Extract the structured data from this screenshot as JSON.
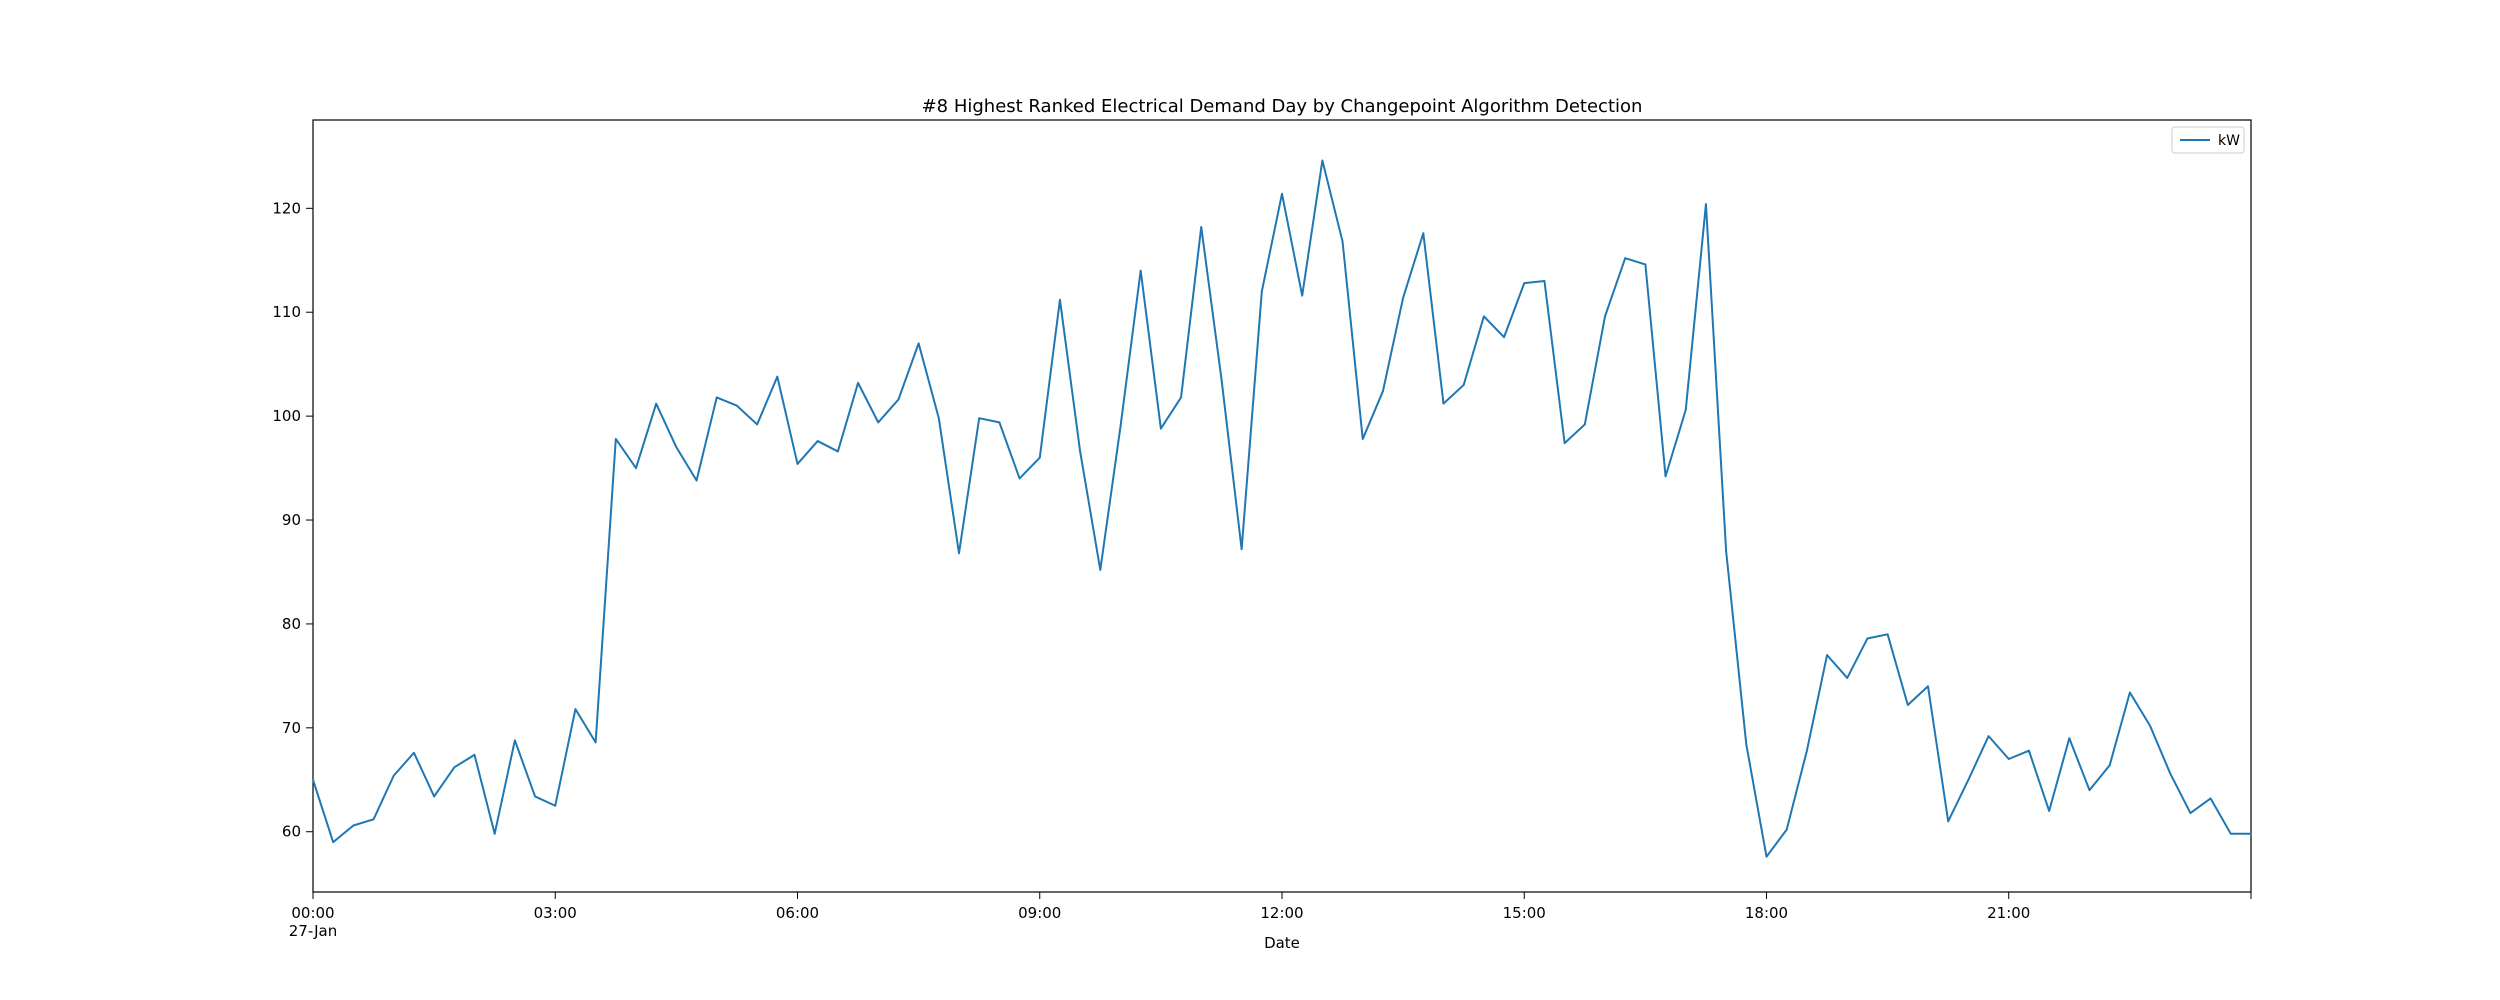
{
  "chart_data": {
    "type": "line",
    "title": "#8 Highest Ranked Electrical Demand Day by Changepoint Algorithm Detection",
    "xlabel": "Date",
    "ylabel": "",
    "x_start": "00:00",
    "x_end": "24:00",
    "xlim": [
      "00:00",
      "24:00"
    ],
    "ylim": [
      54.2,
      128.5
    ],
    "x_ticks": [
      {
        "label": "00:00",
        "sublabel": "27-Jan"
      },
      {
        "label": "03:00",
        "sublabel": ""
      },
      {
        "label": "06:00",
        "sublabel": ""
      },
      {
        "label": "09:00",
        "sublabel": ""
      },
      {
        "label": "12:00",
        "sublabel": ""
      },
      {
        "label": "15:00",
        "sublabel": ""
      },
      {
        "label": "18:00",
        "sublabel": ""
      },
      {
        "label": "21:00",
        "sublabel": ""
      },
      {
        "label": "",
        "sublabel": ""
      }
    ],
    "y_ticks": [
      60,
      70,
      80,
      90,
      100,
      110,
      120
    ],
    "legend": {
      "position": "top-right",
      "entries": [
        "kW"
      ]
    },
    "grid": false,
    "series": [
      {
        "name": "kW",
        "color": "#1f77b4",
        "x": [
          "00:00",
          "00:15",
          "00:30",
          "00:45",
          "01:00",
          "01:15",
          "01:30",
          "01:45",
          "02:00",
          "02:15",
          "02:30",
          "02:45",
          "03:00",
          "03:15",
          "03:30",
          "03:45",
          "04:00",
          "04:15",
          "04:30",
          "04:45",
          "05:00",
          "05:15",
          "05:30",
          "05:45",
          "06:00",
          "06:15",
          "06:30",
          "06:45",
          "07:00",
          "07:15",
          "07:30",
          "07:45",
          "08:00",
          "08:15",
          "08:30",
          "08:45",
          "09:00",
          "09:15",
          "09:30",
          "09:45",
          "10:00",
          "10:15",
          "10:30",
          "10:45",
          "11:00",
          "11:15",
          "11:30",
          "11:45",
          "12:00",
          "12:15",
          "12:30",
          "12:45",
          "13:00",
          "13:15",
          "13:30",
          "13:45",
          "14:00",
          "14:15",
          "14:30",
          "14:45",
          "15:00",
          "15:15",
          "15:30",
          "15:45",
          "16:00",
          "16:15",
          "16:30",
          "16:45",
          "17:00",
          "17:15",
          "17:30",
          "17:45",
          "18:00",
          "18:15",
          "18:30",
          "18:45",
          "19:00",
          "19:15",
          "19:30",
          "19:45",
          "20:00",
          "20:15",
          "20:30",
          "20:45",
          "21:00",
          "21:15",
          "21:30",
          "21:45",
          "22:00",
          "22:15",
          "22:30",
          "22:45",
          "23:00",
          "23:15",
          "23:30",
          "23:45",
          "24:00"
        ],
        "values": [
          65.0,
          59.0,
          60.6,
          61.2,
          65.4,
          67.6,
          63.4,
          66.2,
          67.4,
          59.8,
          68.8,
          63.4,
          62.5,
          71.8,
          68.6,
          97.8,
          95.0,
          101.2,
          97.0,
          93.8,
          101.8,
          101.0,
          99.2,
          103.8,
          95.4,
          97.6,
          96.6,
          103.2,
          99.4,
          101.6,
          107.0,
          99.8,
          86.8,
          99.8,
          99.4,
          94.0,
          96.0,
          111.2,
          96.6,
          85.2,
          99.0,
          114.0,
          98.8,
          101.8,
          118.2,
          103.6,
          87.2,
          112.0,
          121.4,
          111.6,
          124.6,
          116.8,
          97.8,
          102.4,
          111.4,
          117.6,
          101.2,
          103.0,
          109.6,
          107.6,
          112.8,
          113.0,
          97.4,
          99.2,
          109.6,
          115.2,
          114.6,
          94.2,
          100.6,
          120.4,
          87.0,
          68.4,
          57.6,
          60.2,
          67.8,
          77.0,
          74.8,
          78.6,
          79.0,
          72.2,
          74.0,
          61.0,
          65.0,
          69.2,
          67.0,
          67.8,
          62.0,
          69.0,
          64.0,
          66.4,
          73.4,
          70.2,
          65.6,
          61.8,
          63.2,
          59.8,
          59.8
        ]
      }
    ]
  }
}
